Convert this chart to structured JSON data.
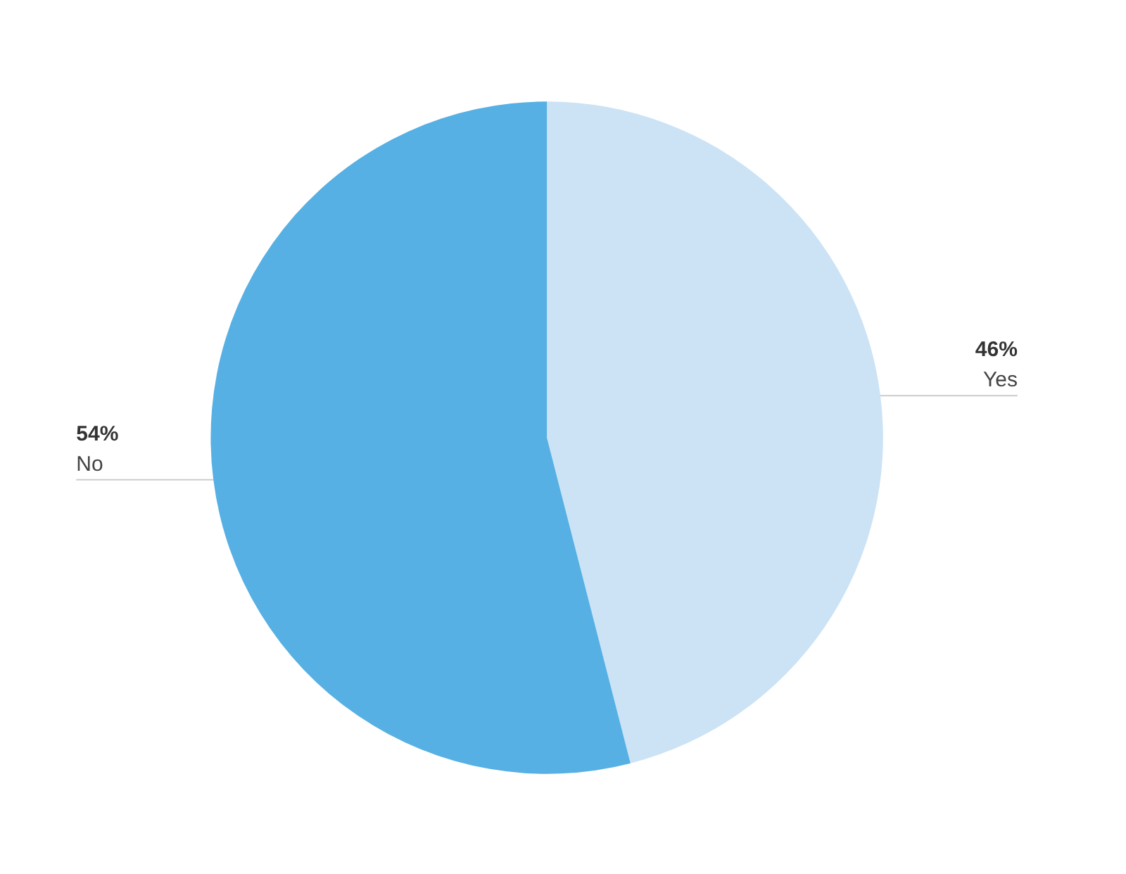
{
  "chart_data": {
    "type": "pie",
    "categories": [
      "Yes",
      "No"
    ],
    "values": [
      46,
      54
    ],
    "value_labels": [
      "46%",
      "54%"
    ],
    "colors": [
      "#cce3f5",
      "#56b0e3"
    ]
  }
}
